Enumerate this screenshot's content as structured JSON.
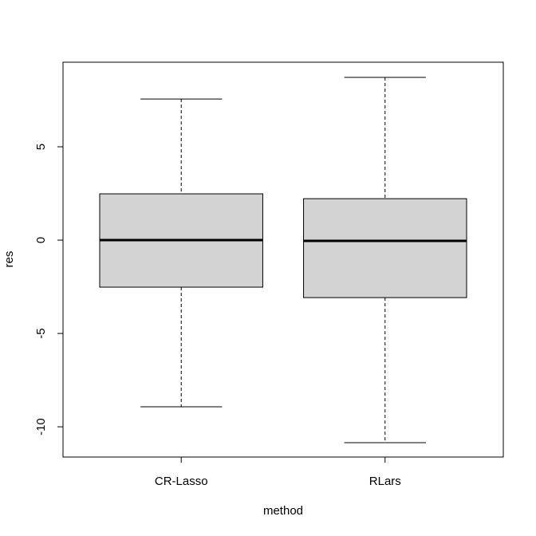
{
  "chart_data": {
    "type": "boxplot",
    "x_label": "method",
    "y_label": "res",
    "categories": [
      "CR-Lasso",
      "RLars"
    ],
    "boxes": [
      {
        "min": -8.93,
        "q1": -2.52,
        "median": 0.0,
        "q3": 2.48,
        "max": 7.56
      },
      {
        "min": -10.85,
        "q1": -3.08,
        "median": -0.04,
        "q3": 2.22,
        "max": 8.72
      }
    ],
    "color": "#d3d3d3",
    "ylim": [
      -11.62,
      9.53
    ],
    "yticks": [
      -10,
      -5,
      0,
      5
    ]
  }
}
